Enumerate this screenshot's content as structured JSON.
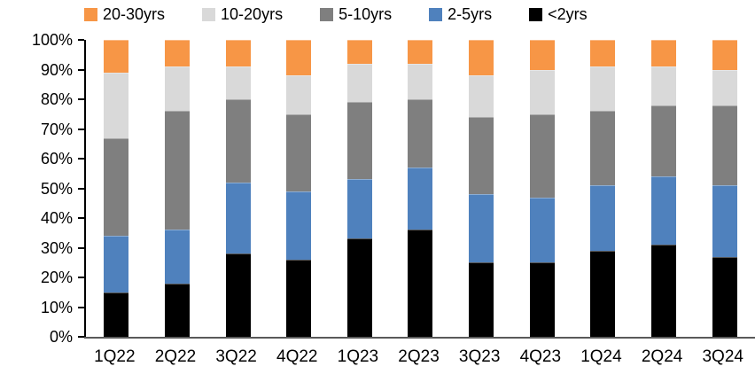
{
  "chart_data": {
    "type": "bar",
    "variant": "stacked-100-percent",
    "title": "",
    "xlabel": "",
    "ylabel": "",
    "ylim": [
      0,
      100
    ],
    "grid": false,
    "legend_position": "top",
    "categories": [
      "1Q22",
      "2Q22",
      "3Q22",
      "4Q22",
      "1Q23",
      "2Q23",
      "3Q23",
      "4Q23",
      "1Q24",
      "2Q24",
      "3Q24"
    ],
    "series": [
      {
        "name": "<2yrs",
        "color": "#000000",
        "values": [
          15,
          18,
          28,
          26,
          33,
          36,
          25,
          25,
          29,
          31,
          27
        ]
      },
      {
        "name": "2-5yrs",
        "color": "#4F81BD",
        "values": [
          19,
          18,
          24,
          23,
          20,
          21,
          23,
          22,
          22,
          23,
          24
        ]
      },
      {
        "name": "5-10yrs",
        "color": "#7F7F7F",
        "values": [
          33,
          40,
          28,
          26,
          26,
          23,
          26,
          28,
          25,
          24,
          27
        ]
      },
      {
        "name": "10-20yrs",
        "color": "#D9D9D9",
        "values": [
          22,
          15,
          11,
          13,
          13,
          12,
          14,
          15,
          15,
          13,
          12
        ]
      },
      {
        "name": "20-30yrs",
        "color": "#F79646",
        "values": [
          11,
          9,
          9,
          12,
          8,
          8,
          12,
          10,
          9,
          9,
          10
        ]
      }
    ],
    "legend_order": [
      "20-30yrs",
      "10-20yrs",
      "5-10yrs",
      "2-5yrs",
      "<2yrs"
    ],
    "y_tick_labels": [
      "0%",
      "10%",
      "20%",
      "30%",
      "40%",
      "50%",
      "60%",
      "70%",
      "80%",
      "90%",
      "100%"
    ],
    "axis_colors": {
      "y_axis": "#000000",
      "x_baseline": "#595959"
    }
  }
}
